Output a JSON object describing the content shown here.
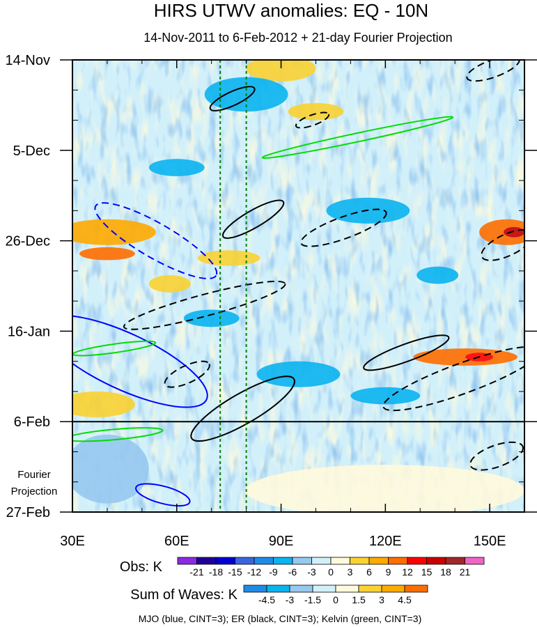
{
  "chart_data": {
    "type": "heatmap",
    "title": "HIRS UTWV anomalies: EQ - 10N",
    "subtitle": "14-Nov-2011 to 6-Feb-2012 + 21-day Fourier Projection",
    "x_axis": {
      "range": [
        30,
        160
      ],
      "tick_values": [
        30,
        60,
        90,
        120,
        150
      ],
      "tick_labels": [
        "30E",
        "60E",
        "90E",
        "120E",
        "150E"
      ]
    },
    "y_axis": {
      "range_days": [
        0,
        105
      ],
      "tick_days": [
        0,
        21,
        42,
        63,
        84,
        105
      ],
      "tick_labels": [
        "14-Nov",
        "5-Dec",
        "26-Dec",
        "16-Jan",
        "6-Feb",
        "27-Feb"
      ],
      "direction": "time increases downward"
    },
    "projection_boundary_day": 84,
    "projection_label": [
      "Fourier",
      "Projection"
    ],
    "reference_longitudes": [
      72.5,
      80
    ],
    "obs_colorbar": {
      "label": "Obs: K",
      "levels": [
        "-21",
        "-18",
        "-15",
        "-12",
        "-9",
        "-6",
        "-3",
        "0",
        "3",
        "6",
        "9",
        "12",
        "15",
        "18",
        "21"
      ],
      "colors": [
        "#8a2be2",
        "#1e0096",
        "#0000d2",
        "#3c64dc",
        "#1e8ce6",
        "#0ab4f0",
        "#96c8f0",
        "#d2f0fa",
        "#fffadc",
        "#fad232",
        "#ffaa00",
        "#ff6e00",
        "#ff0000",
        "#c80000",
        "#a02828",
        "#f064c8"
      ]
    },
    "waves_colorbar": {
      "label": "Sum of Waves: K",
      "levels": [
        "-4.5",
        "-3",
        "-1.5",
        "0",
        "1.5",
        "3",
        "4.5"
      ],
      "colors": [
        "#1e8ce6",
        "#0ab4f0",
        "#96c8f0",
        "#d2f0fa",
        "#fffadc",
        "#fad232",
        "#ffaa00",
        "#ff6e00"
      ]
    },
    "footnote": "MJO (blue, CINT=3); ER (black, CINT=3); Kelvin (green, CINT=3)",
    "contours": [
      {
        "wave": "MJO",
        "color": "#0000ff",
        "sign": "negative",
        "cx": 54,
        "cy": 42,
        "a": 20,
        "b": 4,
        "angle_deg": 30
      },
      {
        "wave": "MJO",
        "color": "#0000ff",
        "sign": "positive",
        "cx": 45,
        "cy": 70,
        "a": 26,
        "b": 6.5,
        "angle_deg": 25
      },
      {
        "wave": "MJO",
        "color": "#0000ff",
        "sign": "positive",
        "cx": 56,
        "cy": 101,
        "a": 8,
        "b": 2,
        "angle_deg": 15
      },
      {
        "wave": "ER",
        "color": "#000000",
        "sign": "positive",
        "cx": 76,
        "cy": 9,
        "a": 7,
        "b": 1.6,
        "angle_deg": -25
      },
      {
        "wave": "ER",
        "color": "#000000",
        "sign": "positive",
        "cx": 82,
        "cy": 37,
        "a": 10,
        "b": 2,
        "angle_deg": -30
      },
      {
        "wave": "ER",
        "color": "#000000",
        "sign": "positive",
        "cx": 79,
        "cy": 81,
        "a": 17,
        "b": 3.5,
        "angle_deg": -30
      },
      {
        "wave": "ER",
        "color": "#000000",
        "sign": "positive",
        "cx": 126,
        "cy": 68,
        "a": 13,
        "b": 2,
        "angle_deg": -20
      },
      {
        "wave": "ER",
        "color": "#000000",
        "sign": "negative",
        "cx": 108,
        "cy": 39,
        "a": 13,
        "b": 2.5,
        "angle_deg": -20
      },
      {
        "wave": "ER",
        "color": "#000000",
        "sign": "negative",
        "cx": 68,
        "cy": 57,
        "a": 24,
        "b": 2.5,
        "angle_deg": -15
      },
      {
        "wave": "ER",
        "color": "#000000",
        "sign": "negative",
        "cx": 63,
        "cy": 73,
        "a": 7,
        "b": 2,
        "angle_deg": -25
      },
      {
        "wave": "ER",
        "color": "#000000",
        "sign": "negative",
        "cx": 142,
        "cy": 74,
        "a": 24,
        "b": 3.5,
        "angle_deg": -20
      },
      {
        "wave": "ER",
        "color": "#000000",
        "sign": "negative",
        "cx": 99,
        "cy": 14,
        "a": 5,
        "b": 1.2,
        "angle_deg": -20
      },
      {
        "wave": "ER",
        "color": "#000000",
        "sign": "negative",
        "cx": 151,
        "cy": 2,
        "a": 8,
        "b": 2,
        "angle_deg": -20
      },
      {
        "wave": "ER",
        "color": "#000000",
        "sign": "negative",
        "cx": 155,
        "cy": 43,
        "a": 8,
        "b": 2.5,
        "angle_deg": -25
      },
      {
        "wave": "ER",
        "color": "#000000",
        "sign": "negative",
        "cx": 152,
        "cy": 92,
        "a": 8,
        "b": 2.5,
        "angle_deg": -20
      },
      {
        "wave": "Kelvin",
        "color": "#00dd00",
        "sign": "positive",
        "cx": 112,
        "cy": 18,
        "a": 28,
        "b": 1,
        "angle_deg": -12
      },
      {
        "wave": "Kelvin",
        "color": "#00dd00",
        "sign": "positive",
        "cx": 42,
        "cy": 67,
        "a": 12,
        "b": 1,
        "angle_deg": -8
      },
      {
        "wave": "Kelvin",
        "color": "#00dd00",
        "sign": "positive",
        "cx": 42,
        "cy": 87,
        "a": 14,
        "b": 1.2,
        "angle_deg": -5
      }
    ]
  }
}
